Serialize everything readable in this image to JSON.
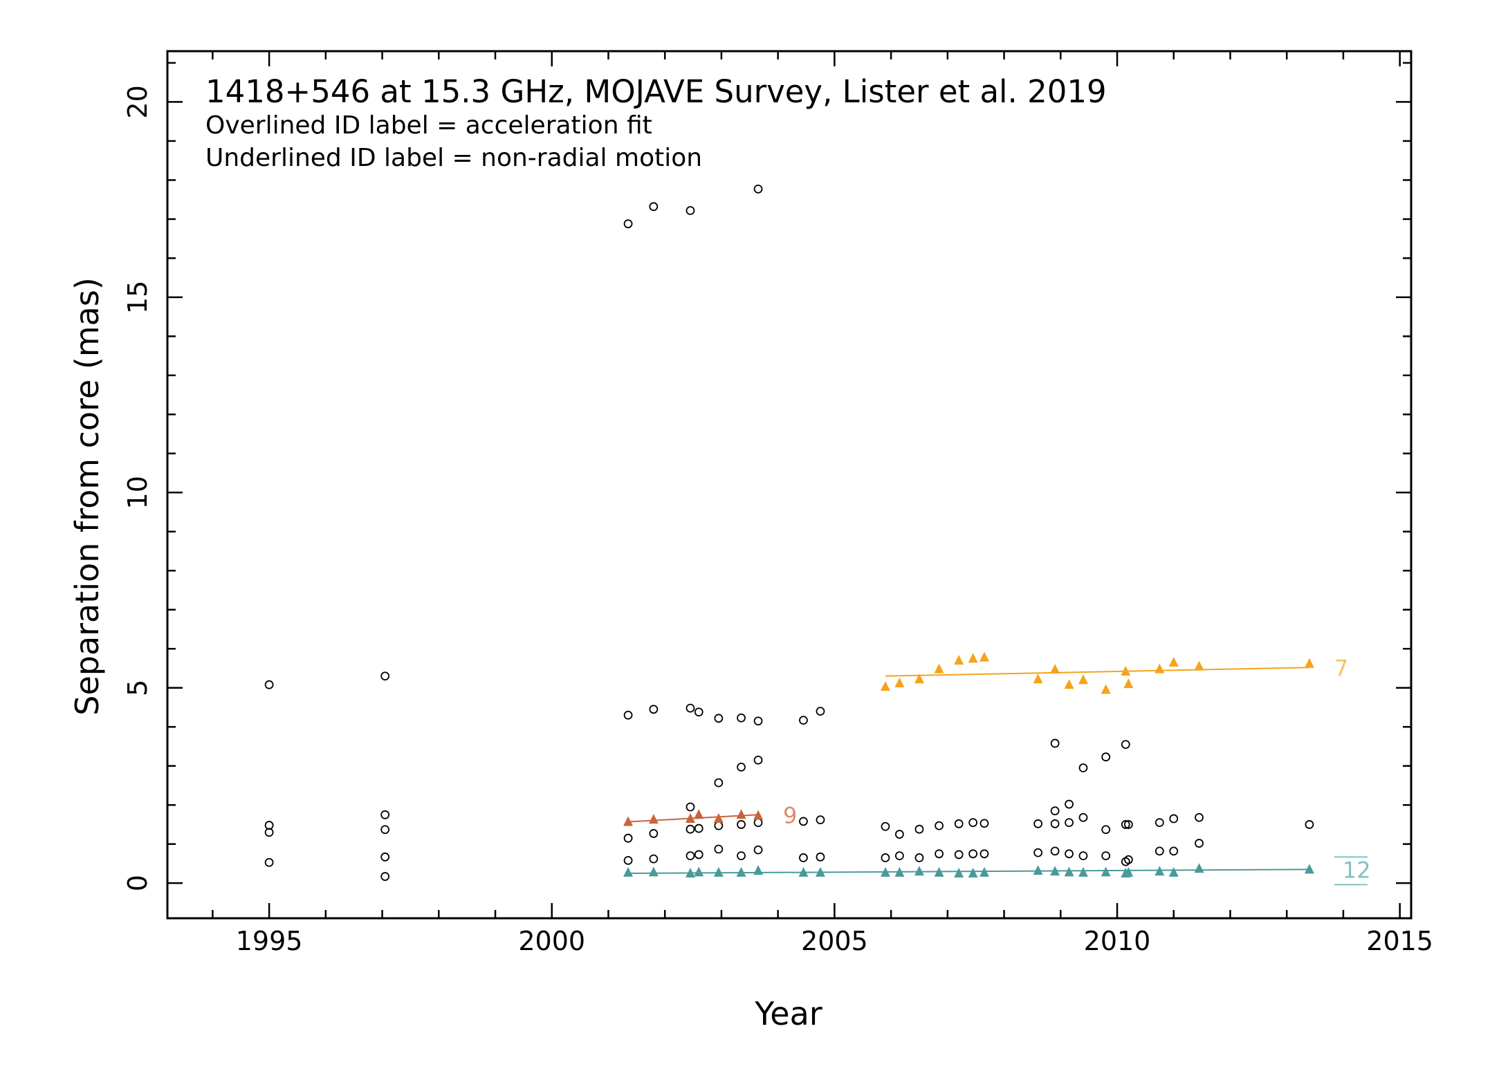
{
  "chart_data": {
    "type": "scatter",
    "title": "1418+546 at 15.3 GHz, MOJAVE Survey, Lister et al. 2019",
    "notes": [
      "Overlined ID label = acceleration fit",
      "Underlined ID label = non-radial motion"
    ],
    "xlabel": "Year",
    "ylabel": "Separation from core (mas)",
    "xlim": [
      1993.2,
      2015.2
    ],
    "ylim": [
      -0.9,
      21.3
    ],
    "xticks": [
      1995,
      2000,
      2005,
      2010,
      2015
    ],
    "yticks": [
      0,
      5,
      10,
      15,
      20
    ],
    "grid": false,
    "legend": "none",
    "unassigned_components": {
      "marker": "open-circle",
      "color": "#000000",
      "points": [
        [
          1995.0,
          5.08
        ],
        [
          1995.0,
          1.48
        ],
        [
          1995.0,
          1.3
        ],
        [
          1995.0,
          0.53
        ],
        [
          1997.05,
          5.3
        ],
        [
          1997.05,
          1.75
        ],
        [
          1997.05,
          1.37
        ],
        [
          1997.05,
          0.67
        ],
        [
          1997.05,
          0.17
        ],
        [
          2001.35,
          16.88
        ],
        [
          2001.35,
          4.3
        ],
        [
          2001.35,
          1.15
        ],
        [
          2001.35,
          0.58
        ],
        [
          2001.8,
          17.32
        ],
        [
          2001.8,
          4.45
        ],
        [
          2001.8,
          1.27
        ],
        [
          2001.8,
          0.62
        ],
        [
          2002.45,
          17.22
        ],
        [
          2002.45,
          4.48
        ],
        [
          2002.45,
          1.95
        ],
        [
          2002.45,
          1.38
        ],
        [
          2002.45,
          0.7
        ],
        [
          2002.6,
          4.38
        ],
        [
          2002.6,
          1.4
        ],
        [
          2002.6,
          0.73
        ],
        [
          2002.95,
          4.22
        ],
        [
          2002.95,
          2.57
        ],
        [
          2002.95,
          1.47
        ],
        [
          2002.95,
          0.87
        ],
        [
          2003.35,
          4.23
        ],
        [
          2003.35,
          2.97
        ],
        [
          2003.35,
          1.5
        ],
        [
          2003.35,
          0.7
        ],
        [
          2003.65,
          17.77
        ],
        [
          2003.65,
          4.15
        ],
        [
          2003.65,
          3.15
        ],
        [
          2003.65,
          1.55
        ],
        [
          2003.65,
          0.85
        ],
        [
          2004.45,
          4.17
        ],
        [
          2004.45,
          1.58
        ],
        [
          2004.45,
          0.65
        ],
        [
          2004.75,
          4.4
        ],
        [
          2004.75,
          1.62
        ],
        [
          2004.75,
          0.67
        ],
        [
          2005.9,
          1.45
        ],
        [
          2005.9,
          0.65
        ],
        [
          2006.15,
          1.25
        ],
        [
          2006.15,
          0.7
        ],
        [
          2006.5,
          1.38
        ],
        [
          2006.5,
          0.65
        ],
        [
          2006.85,
          1.47
        ],
        [
          2006.85,
          0.75
        ],
        [
          2007.2,
          1.52
        ],
        [
          2007.2,
          0.73
        ],
        [
          2007.45,
          1.55
        ],
        [
          2007.45,
          0.75
        ],
        [
          2007.65,
          1.53
        ],
        [
          2007.65,
          0.75
        ],
        [
          2008.6,
          1.52
        ],
        [
          2008.6,
          0.78
        ],
        [
          2008.9,
          3.58
        ],
        [
          2008.9,
          1.85
        ],
        [
          2008.9,
          1.52
        ],
        [
          2008.9,
          0.82
        ],
        [
          2009.15,
          2.02
        ],
        [
          2009.15,
          1.55
        ],
        [
          2009.15,
          0.75
        ],
        [
          2009.4,
          2.95
        ],
        [
          2009.4,
          1.68
        ],
        [
          2009.4,
          0.7
        ],
        [
          2009.8,
          3.23
        ],
        [
          2009.8,
          1.37
        ],
        [
          2009.8,
          0.7
        ],
        [
          2010.15,
          3.55
        ],
        [
          2010.15,
          1.5
        ],
        [
          2010.15,
          0.55
        ],
        [
          2010.2,
          1.5
        ],
        [
          2010.2,
          0.6
        ],
        [
          2010.75,
          1.55
        ],
        [
          2010.75,
          0.82
        ],
        [
          2011.0,
          1.65
        ],
        [
          2011.0,
          0.82
        ],
        [
          2011.45,
          1.68
        ],
        [
          2011.45,
          1.02
        ],
        [
          2013.4,
          1.5
        ]
      ]
    },
    "series": [
      {
        "name": "7",
        "marker": "filled-triangle",
        "color": "#f5a31a",
        "label_color": "#f8c060",
        "points": [
          [
            2005.9,
            5.03
          ],
          [
            2006.15,
            5.12
          ],
          [
            2006.5,
            5.22
          ],
          [
            2006.85,
            5.48
          ],
          [
            2007.2,
            5.7
          ],
          [
            2007.45,
            5.75
          ],
          [
            2007.65,
            5.78
          ],
          [
            2008.6,
            5.22
          ],
          [
            2008.9,
            5.47
          ],
          [
            2009.15,
            5.08
          ],
          [
            2009.4,
            5.2
          ],
          [
            2009.8,
            4.95
          ],
          [
            2010.15,
            5.42
          ],
          [
            2010.2,
            5.1
          ],
          [
            2010.75,
            5.48
          ],
          [
            2011.0,
            5.65
          ],
          [
            2011.45,
            5.55
          ],
          [
            2013.4,
            5.62
          ]
        ],
        "fit": [
          [
            2005.9,
            5.3
          ],
          [
            2013.4,
            5.52
          ]
        ]
      },
      {
        "name": "9",
        "marker": "filled-triangle",
        "color": "#c8643c",
        "label_color": "#e08a68",
        "points": [
          [
            2001.35,
            1.57
          ],
          [
            2001.8,
            1.63
          ],
          [
            2002.45,
            1.65
          ],
          [
            2002.6,
            1.75
          ],
          [
            2002.95,
            1.65
          ],
          [
            2003.35,
            1.75
          ],
          [
            2003.65,
            1.73
          ]
        ],
        "fit": [
          [
            2001.35,
            1.57
          ],
          [
            2003.65,
            1.75
          ]
        ]
      },
      {
        "name": "12",
        "marker": "filled-triangle",
        "color": "#4a9a9a",
        "label_color": "#80c2c2",
        "label_style": "overlined-underlined",
        "points": [
          [
            2001.35,
            0.27
          ],
          [
            2001.8,
            0.28
          ],
          [
            2002.45,
            0.25
          ],
          [
            2002.6,
            0.28
          ],
          [
            2002.95,
            0.27
          ],
          [
            2003.35,
            0.27
          ],
          [
            2003.65,
            0.32
          ],
          [
            2004.45,
            0.27
          ],
          [
            2004.75,
            0.27
          ],
          [
            2005.9,
            0.27
          ],
          [
            2006.15,
            0.27
          ],
          [
            2006.5,
            0.3
          ],
          [
            2006.85,
            0.27
          ],
          [
            2007.2,
            0.25
          ],
          [
            2007.45,
            0.25
          ],
          [
            2007.65,
            0.27
          ],
          [
            2008.6,
            0.32
          ],
          [
            2008.9,
            0.3
          ],
          [
            2009.15,
            0.28
          ],
          [
            2009.4,
            0.27
          ],
          [
            2009.8,
            0.28
          ],
          [
            2010.15,
            0.25
          ],
          [
            2010.2,
            0.27
          ],
          [
            2010.75,
            0.3
          ],
          [
            2011.0,
            0.27
          ],
          [
            2011.45,
            0.37
          ],
          [
            2013.4,
            0.35
          ]
        ],
        "fit": [
          [
            2001.35,
            0.25
          ],
          [
            2013.4,
            0.35
          ]
        ]
      }
    ]
  }
}
